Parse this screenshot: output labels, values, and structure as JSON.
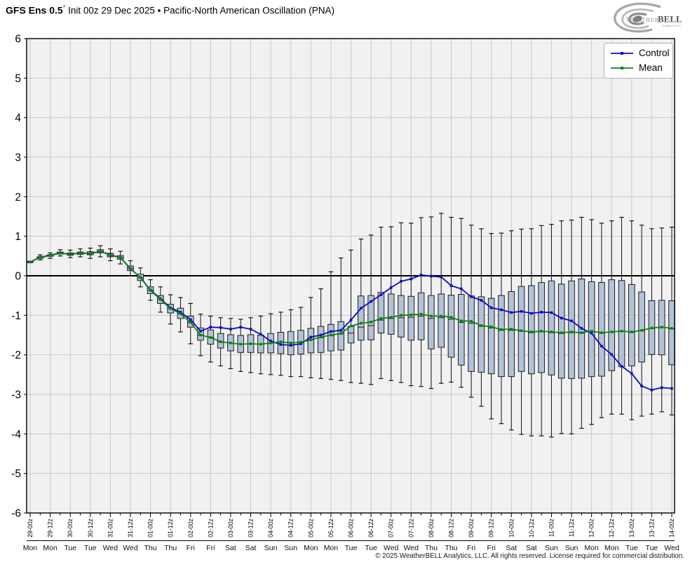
{
  "title": {
    "program": "GFS Ens 0.5",
    "degree": "°",
    "rest": " Init 00z 29 Dec 2025 • Pacific-North American Oscillation (PNA)"
  },
  "logo": {
    "weather": "Weather",
    "bell": "BELL",
    "sub": "Analytics LLC"
  },
  "legend": {
    "items": [
      {
        "label": "Control",
        "color": "#0b0bc8"
      },
      {
        "label": "Mean",
        "color": "#0e840e"
      }
    ]
  },
  "footer": {
    "text": "© 2025 WeatherBELL Analytics, LLC. All rights reserved. License required for commercial distribution."
  },
  "chart_data": {
    "type": "line+boxplot",
    "title": "GFS Ens 0.5° Init 00z 29 Dec 2025 • Pacific-North American Oscillation (PNA)",
    "ylim": [
      -6,
      6
    ],
    "yticks": [
      6,
      5,
      4,
      3,
      2,
      1,
      0,
      -1,
      -2,
      -3,
      -4,
      -5,
      -6
    ],
    "grid": true,
    "x_step_hours": 6,
    "x_tick_labels": [
      "29-00z",
      "29-12z",
      "30-00z",
      "30-12z",
      "31-00z",
      "31-12z",
      "01-00z",
      "01-12z",
      "02-00z",
      "02-12z",
      "03-00z",
      "03-12z",
      "04-00z",
      "04-12z",
      "05-00z",
      "05-12z",
      "06-00z",
      "06-12z",
      "07-00z",
      "07-12z",
      "08-00z",
      "08-12z",
      "09-00z",
      "09-12z",
      "10-00z",
      "10-12z",
      "11-00z",
      "11-12z",
      "12-00z",
      "12-12z",
      "13-00z",
      "13-12z",
      "14-00z"
    ],
    "day_labels": [
      "Mon",
      "Mon",
      "Tue",
      "Tue",
      "Wed",
      "Wed",
      "Thu",
      "Thu",
      "Fri",
      "Fri",
      "Sat",
      "Sat",
      "Sun",
      "Sun",
      "Mon",
      "Mon",
      "Tue",
      "Tue",
      "Wed",
      "Wed",
      "Thu",
      "Thu",
      "Fri",
      "Fri",
      "Sat",
      "Sat",
      "Sun",
      "Sun",
      "Mon",
      "Mon",
      "Tue",
      "Tue",
      "Wed"
    ],
    "series": [
      {
        "name": "Control",
        "color": "#0b0bc8",
        "values": [
          0.35,
          0.47,
          0.52,
          0.58,
          0.54,
          0.58,
          0.56,
          0.62,
          0.53,
          0.46,
          0.18,
          -0.04,
          -0.36,
          -0.58,
          -0.81,
          -0.92,
          -1.11,
          -1.4,
          -1.3,
          -1.31,
          -1.35,
          -1.3,
          -1.35,
          -1.48,
          -1.65,
          -1.74,
          -1.76,
          -1.72,
          -1.55,
          -1.5,
          -1.41,
          -1.38,
          -1.12,
          -0.82,
          -0.65,
          -0.48,
          -0.3,
          -0.14,
          -0.08,
          0.02,
          -0.01,
          -0.03,
          -0.25,
          -0.33,
          -0.53,
          -0.62,
          -0.81,
          -0.86,
          -0.93,
          -0.9,
          -0.95,
          -0.92,
          -0.93,
          -1.07,
          -1.14,
          -1.33,
          -1.45,
          -1.78,
          -1.99,
          -2.29,
          -2.47,
          -2.79,
          -2.89,
          -2.83,
          -2.85
        ]
      },
      {
        "name": "Mean",
        "color": "#0e840e",
        "values": [
          0.35,
          0.46,
          0.51,
          0.57,
          0.55,
          0.57,
          0.57,
          0.62,
          0.52,
          0.46,
          0.19,
          -0.05,
          -0.37,
          -0.6,
          -0.83,
          -0.96,
          -1.18,
          -1.5,
          -1.56,
          -1.67,
          -1.7,
          -1.73,
          -1.72,
          -1.73,
          -1.7,
          -1.67,
          -1.7,
          -1.68,
          -1.62,
          -1.55,
          -1.5,
          -1.46,
          -1.27,
          -1.2,
          -1.17,
          -1.08,
          -1.05,
          -1.0,
          -0.99,
          -0.97,
          -1.02,
          -1.02,
          -1.05,
          -1.14,
          -1.15,
          -1.26,
          -1.29,
          -1.36,
          -1.35,
          -1.39,
          -1.42,
          -1.4,
          -1.42,
          -1.44,
          -1.42,
          -1.44,
          -1.4,
          -1.44,
          -1.42,
          -1.4,
          -1.42,
          -1.38,
          -1.32,
          -1.3,
          -1.33
        ]
      }
    ],
    "boxes_format": [
      "whisker_low",
      "q1",
      "median",
      "q3",
      "whisker_high"
    ],
    "boxes": [
      [
        0.33,
        0.34,
        0.35,
        0.36,
        0.37
      ],
      [
        0.4,
        0.44,
        0.46,
        0.48,
        0.53
      ],
      [
        0.44,
        0.49,
        0.51,
        0.53,
        0.58
      ],
      [
        0.5,
        0.55,
        0.57,
        0.6,
        0.66
      ],
      [
        0.46,
        0.52,
        0.55,
        0.58,
        0.65
      ],
      [
        0.48,
        0.54,
        0.57,
        0.6,
        0.68
      ],
      [
        0.44,
        0.53,
        0.57,
        0.61,
        0.7
      ],
      [
        0.48,
        0.58,
        0.62,
        0.66,
        0.76
      ],
      [
        0.38,
        0.48,
        0.52,
        0.57,
        0.68
      ],
      [
        0.3,
        0.42,
        0.46,
        0.51,
        0.62
      ],
      [
        0.0,
        0.13,
        0.19,
        0.25,
        0.38
      ],
      [
        -0.28,
        -0.12,
        -0.05,
        0.04,
        0.2
      ],
      [
        -0.62,
        -0.45,
        -0.37,
        -0.28,
        -0.1
      ],
      [
        -0.92,
        -0.7,
        -0.6,
        -0.5,
        -0.28
      ],
      [
        -1.22,
        -0.94,
        -0.83,
        -0.72,
        -0.48
      ],
      [
        -1.42,
        -1.08,
        -0.96,
        -0.82,
        -0.55
      ],
      [
        -1.72,
        -1.3,
        -1.18,
        -1.02,
        -0.7
      ],
      [
        -2.02,
        -1.63,
        -1.5,
        -1.32,
        -0.97
      ],
      [
        -2.18,
        -1.73,
        -1.56,
        -1.37,
        -1.02
      ],
      [
        -2.28,
        -1.83,
        -1.67,
        -1.46,
        -1.06
      ],
      [
        -2.35,
        -1.9,
        -1.7,
        -1.49,
        -1.08
      ],
      [
        -2.42,
        -1.94,
        -1.73,
        -1.51,
        -1.1
      ],
      [
        -2.45,
        -1.94,
        -1.72,
        -1.49,
        -1.06
      ],
      [
        -2.48,
        -1.95,
        -1.73,
        -1.5,
        -1.02
      ],
      [
        -2.5,
        -1.95,
        -1.7,
        -1.46,
        -0.96
      ],
      [
        -2.52,
        -1.97,
        -1.68,
        -1.43,
        -0.92
      ],
      [
        -2.55,
        -2.0,
        -1.7,
        -1.41,
        -0.86
      ],
      [
        -2.55,
        -1.98,
        -1.68,
        -1.38,
        -0.8
      ],
      [
        -2.58,
        -1.95,
        -1.62,
        -1.33,
        -0.55
      ],
      [
        -2.6,
        -1.94,
        -1.56,
        -1.28,
        -0.33
      ],
      [
        -2.62,
        -1.9,
        -1.51,
        -1.23,
        0.1
      ],
      [
        -2.65,
        -1.88,
        -1.47,
        -1.16,
        0.45
      ],
      [
        -2.7,
        -1.7,
        -1.45,
        -1.28,
        0.65
      ],
      [
        -2.72,
        -1.63,
        -1.3,
        -0.51,
        0.93
      ],
      [
        -2.75,
        -1.62,
        -1.26,
        -0.5,
        1.03
      ],
      [
        -2.6,
        -1.45,
        -1.12,
        -0.42,
        1.23
      ],
      [
        -2.65,
        -1.48,
        -1.08,
        -0.46,
        1.24
      ],
      [
        -2.7,
        -1.55,
        -1.06,
        -0.5,
        1.34
      ],
      [
        -2.78,
        -1.63,
        -1.05,
        -0.52,
        1.33
      ],
      [
        -2.8,
        -1.62,
        -1.02,
        -0.43,
        1.47
      ],
      [
        -2.85,
        -1.85,
        -1.08,
        -0.5,
        1.49
      ],
      [
        -2.72,
        -1.81,
        -1.06,
        -0.46,
        1.58
      ],
      [
        -2.69,
        -2.06,
        -1.1,
        -0.49,
        1.48
      ],
      [
        -2.82,
        -2.26,
        -1.18,
        -0.47,
        1.45
      ],
      [
        -3.07,
        -2.42,
        -1.2,
        -0.51,
        1.28
      ],
      [
        -3.3,
        -2.44,
        -1.28,
        -0.53,
        1.19
      ],
      [
        -3.62,
        -2.48,
        -1.32,
        -0.57,
        1.07
      ],
      [
        -3.74,
        -2.55,
        -1.38,
        -0.5,
        1.08
      ],
      [
        -3.9,
        -2.55,
        -1.38,
        -0.4,
        1.14
      ],
      [
        -4.01,
        -2.42,
        -1.4,
        -0.27,
        1.18
      ],
      [
        -4.05,
        -2.48,
        -1.44,
        -0.25,
        1.19
      ],
      [
        -4.05,
        -2.45,
        -1.42,
        -0.17,
        1.27
      ],
      [
        -4.08,
        -2.51,
        -1.44,
        -0.13,
        1.3
      ],
      [
        -3.99,
        -2.59,
        -1.46,
        -0.21,
        1.39
      ],
      [
        -4.0,
        -2.6,
        -1.44,
        -0.13,
        1.41
      ],
      [
        -3.86,
        -2.59,
        -1.45,
        -0.08,
        1.48
      ],
      [
        -3.76,
        -2.55,
        -1.42,
        -0.15,
        1.42
      ],
      [
        -3.59,
        -2.54,
        -1.45,
        -0.17,
        1.33
      ],
      [
        -3.5,
        -2.4,
        -1.43,
        -0.1,
        1.39
      ],
      [
        -3.5,
        -2.3,
        -1.41,
        -0.12,
        1.48
      ],
      [
        -3.64,
        -2.28,
        -1.43,
        -0.22,
        1.39
      ],
      [
        -3.55,
        -2.18,
        -1.39,
        -0.41,
        1.28
      ],
      [
        -3.5,
        -1.99,
        -1.33,
        -0.63,
        1.19
      ],
      [
        -3.44,
        -2.0,
        -1.31,
        -0.62,
        1.21
      ],
      [
        -3.52,
        -2.25,
        -1.34,
        -0.63,
        1.23
      ]
    ],
    "colors": {
      "plot_bg": "#f1f1f1",
      "grid": "#c9c9c9",
      "zero_line": "#000000",
      "frame": "#000000",
      "box_fill": "#b3c2d8",
      "box_edge": "#1c1c1c",
      "whisker": "#101010",
      "tick_text": "#000000",
      "day_text": "#111111"
    },
    "legend_position": "top-right"
  }
}
